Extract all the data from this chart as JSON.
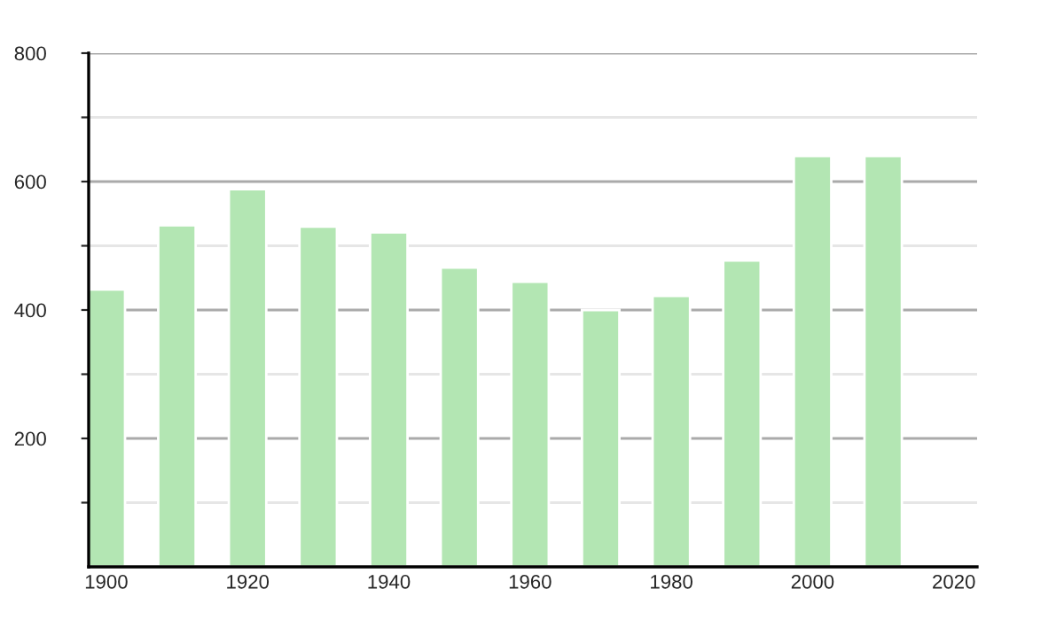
{
  "chart_data": {
    "type": "bar",
    "x": [
      1900,
      1910,
      1920,
      1930,
      1940,
      1950,
      1960,
      1970,
      1980,
      1990,
      2000,
      2010
    ],
    "values": [
      432,
      532,
      588,
      530,
      521,
      466,
      444,
      400,
      422,
      477,
      640,
      640
    ],
    "color": "#b3e6b3",
    "xlim": [
      1897.5,
      2023.3
    ],
    "xticks": [
      1900,
      1920,
      1940,
      1960,
      1980,
      2000,
      2020
    ],
    "ylim": [
      0,
      800
    ],
    "yticks": [
      {
        "value": 100,
        "label": null
      },
      200,
      {
        "value": 300,
        "label": null
      },
      400,
      {
        "value": 500,
        "label": null
      },
      600,
      {
        "value": 700,
        "label": null
      },
      800
    ],
    "grid": "y"
  }
}
